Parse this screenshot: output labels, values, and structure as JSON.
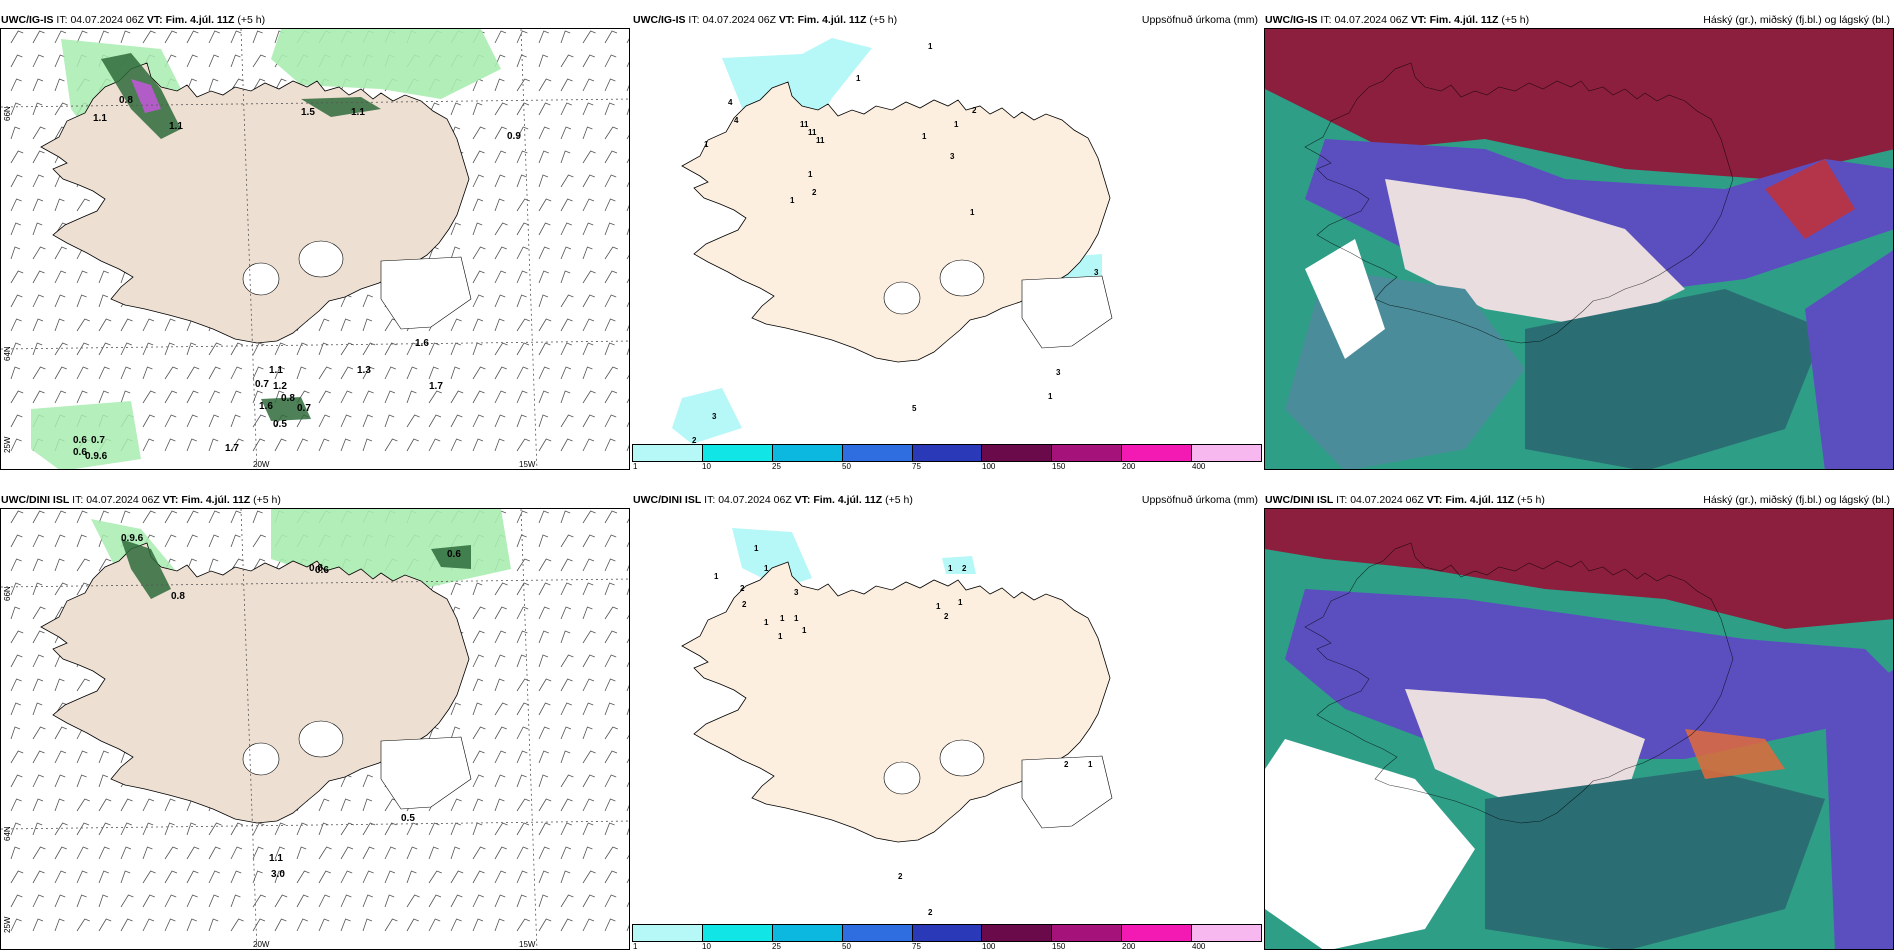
{
  "colors": {
    "land": "#eddfd1",
    "cyan": "#b6f7f7",
    "green": "#9ee8a8",
    "darkgreen": "#2f6b3b",
    "sea": "#ffffff",
    "maroon": "#8c1f3e",
    "purple": "#5b4fc0",
    "teal": "#25a889"
  },
  "panels": {
    "tl": {
      "model": "UWC/IG-IS",
      "it_label": "IT:",
      "it": "04.07.2024 06Z",
      "vt_label": "VT:",
      "vt": "Fim. 4.júl. 11Z",
      "lead": "(+5 h)",
      "right": ""
    },
    "tm": {
      "model": "UWC/IG-IS",
      "it_label": "IT:",
      "it": "04.07.2024 06Z",
      "vt_label": "VT:",
      "vt": "Fim. 4.júl. 11Z",
      "lead": "(+5 h)",
      "right": "Uppsöfnuð úrkoma (mm)"
    },
    "tr": {
      "model": "UWC/IG-IS",
      "it_label": "IT:",
      "it": "04.07.2024 06Z",
      "vt_label": "VT:",
      "vt": "Fim. 4.júl. 11Z",
      "lead": "(+5 h)",
      "right": "Háský (gr.), miðský (fj.bl.) og lágský (bl.)"
    },
    "bl": {
      "model": "UWC/DINI ISL",
      "it_label": "IT:",
      "it": "04.07.2024 06Z",
      "vt_label": "VT:",
      "vt": "Fim. 4.júl. 11Z",
      "lead": "(+5 h)",
      "right": ""
    },
    "bm": {
      "model": "UWC/DINI ISL",
      "it_label": "IT:",
      "it": "04.07.2024 06Z",
      "vt_label": "VT:",
      "vt": "Fim. 4.júl. 11Z",
      "lead": "(+5 h)",
      "right": "Uppsöfnuð úrkoma (mm)"
    },
    "br": {
      "model": "UWC/DINI ISL",
      "it_label": "IT:",
      "it": "04.07.2024 06Z",
      "vt_label": "VT:",
      "vt": "Fim. 4.júl. 11Z",
      "lead": "(+5 h)",
      "right": "Háský (gr.), miðský (fj.bl.) og lágský (bl.)"
    }
  },
  "axes": {
    "lat66": "66N",
    "lat64": "64N",
    "lon25": "25W",
    "lon20": "20W",
    "lon15": "15W"
  },
  "legend": {
    "ticks": [
      "1",
      "10",
      "25",
      "50",
      "75",
      "100",
      "150",
      "200",
      "400"
    ],
    "colors": [
      "#b6f7f7",
      "#11e5e5",
      "#0cb7e0",
      "#2f6ee0",
      "#2a39b8",
      "#6b0a4a",
      "#a4127a",
      "#f21ab2",
      "#f7b8f0"
    ]
  },
  "values": {
    "tl": [
      "0.8",
      "1.1",
      "1.1",
      "1.5",
      "1.1",
      "0.9",
      "1.6",
      "1.3",
      "1.1",
      "1.2",
      "0.7",
      "1.6",
      "0.8",
      "0.7",
      "0.5",
      "1.7",
      "0.6",
      "0.7",
      "0.6",
      "0.9.6",
      "1.7"
    ],
    "tm": [
      "1",
      "1",
      "4",
      "1",
      "4",
      "11",
      "11",
      "11",
      "1",
      "2",
      "1",
      "1",
      "2",
      "1",
      "3",
      "1",
      "3",
      "3",
      "1",
      "5",
      "3",
      "2"
    ],
    "bl": [
      "0.9.6",
      "0.8",
      "0.8",
      "0.6",
      "0.6",
      "0.5",
      "1.1",
      "3.0"
    ],
    "bm": [
      "1",
      "2",
      "1",
      "3",
      "1",
      "2",
      "1",
      "1",
      "1",
      "1",
      "1",
      "1",
      "2",
      "1",
      "1",
      "2",
      "1",
      "2",
      "2",
      "2"
    ]
  }
}
